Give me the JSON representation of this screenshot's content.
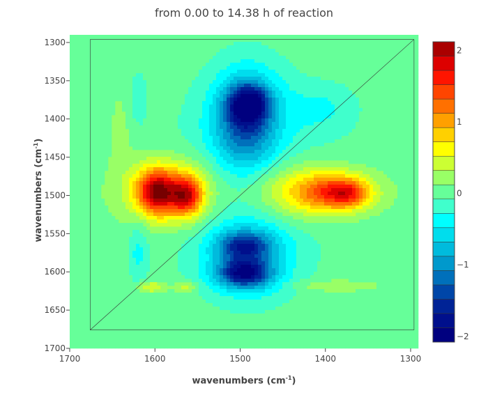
{
  "chart_data": {
    "type": "heatmap",
    "subtype": "filled-contour",
    "title": "from 0.00 to 14.38 h of reaction",
    "xlabel": "wavenumbers (cm",
    "ylabel": "wavenumbers (cm",
    "label_sup": "-1",
    "label_close": ")",
    "xlim": [
      1700,
      1291
    ],
    "ylim": [
      1290,
      1700
    ],
    "xticks": [
      1700,
      1600,
      1500,
      1400,
      1300
    ],
    "yticks": [
      1300,
      1350,
      1400,
      1450,
      1500,
      1550,
      1600,
      1650,
      1700
    ],
    "colorbar": {
      "range": [
        -2.08,
        2.12
      ],
      "ticks": [
        2,
        1,
        0,
        -1,
        -2
      ],
      "level_step": 0.2,
      "colors": [
        "#00007f",
        "#000f8c",
        "#002396",
        "#0046a8",
        "#0070bb",
        "#0099cc",
        "#00bbdd",
        "#00dded",
        "#00ffff",
        "#40ffcc",
        "#66ff99",
        "#99ff66",
        "#ccff33",
        "#ffff00",
        "#ffd000",
        "#ffa000",
        "#ff7000",
        "#ff4500",
        "#ff1500",
        "#dd0000",
        "#aa0000",
        "#770000"
      ]
    },
    "baseline": 0.12,
    "components": [
      {
        "x": 1500,
        "y": 1490,
        "amp": -0.3,
        "sx": 110,
        "sy": 110
      },
      {
        "x": 1598,
        "y": 1495,
        "amp": 1.6,
        "sx": 16,
        "sy": 20
      },
      {
        "x": 1563,
        "y": 1500,
        "amp": 1.4,
        "sx": 13,
        "sy": 18
      },
      {
        "x": 1580,
        "y": 1495,
        "amp": 0.8,
        "sx": 40,
        "sy": 32
      },
      {
        "x": 1385,
        "y": 1496,
        "amp": 1.2,
        "sx": 28,
        "sy": 16
      },
      {
        "x": 1430,
        "y": 1495,
        "amp": 0.8,
        "sx": 42,
        "sy": 26
      },
      {
        "x": 1372,
        "y": 1498,
        "amp": 0.5,
        "sx": 14,
        "sy": 11
      },
      {
        "x": 1490,
        "y": 1380,
        "amp": -1.4,
        "sx": 17,
        "sy": 18
      },
      {
        "x": 1495,
        "y": 1410,
        "amp": -0.8,
        "sx": 24,
        "sy": 38
      },
      {
        "x": 1490,
        "y": 1390,
        "amp": -0.5,
        "sx": 35,
        "sy": 55
      },
      {
        "x": 1495,
        "y": 1602,
        "amp": -1.5,
        "sx": 22,
        "sy": 13
      },
      {
        "x": 1495,
        "y": 1566,
        "amp": -1.1,
        "sx": 22,
        "sy": 13
      },
      {
        "x": 1490,
        "y": 1580,
        "amp": -0.6,
        "sx": 38,
        "sy": 40
      },
      {
        "x": 1605,
        "y": 1620,
        "amp": 0.5,
        "sx": 12,
        "sy": 5
      },
      {
        "x": 1565,
        "y": 1620,
        "amp": 0.4,
        "sx": 10,
        "sy": 5
      },
      {
        "x": 1395,
        "y": 1618,
        "amp": 0.3,
        "sx": 30,
        "sy": 5
      },
      {
        "x": 1620,
        "y": 1575,
        "amp": -0.35,
        "sx": 8,
        "sy": 30
      },
      {
        "x": 1620,
        "y": 1370,
        "amp": -0.3,
        "sx": 7,
        "sy": 25
      },
      {
        "x": 1400,
        "y": 1385,
        "amp": -0.3,
        "sx": 30,
        "sy": 25
      },
      {
        "x": 1640,
        "y": 1420,
        "amp": 0.15,
        "sx": 10,
        "sy": 40
      }
    ]
  }
}
